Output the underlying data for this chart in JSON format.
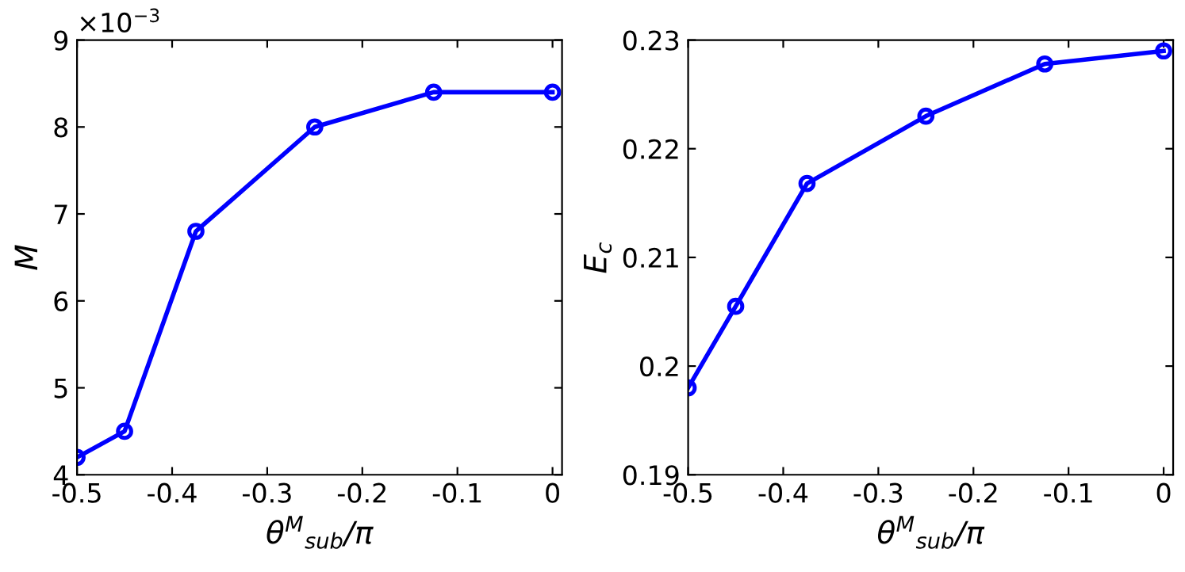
{
  "chart_data": [
    {
      "type": "line",
      "xlabel": "θ$^{M}$$_{sub}$/π",
      "ylabel": "M",
      "annotations": [
        "×10$^{−3}$"
      ],
      "x": [
        -0.5,
        -0.45,
        -0.375,
        -0.25,
        -0.125,
        0
      ],
      "series": [
        {
          "color": "#0000ff",
          "values": [
            4.2,
            4.5,
            6.8,
            8.0,
            8.4,
            8.4
          ]
        }
      ],
      "xlim": [
        -0.5,
        0.01
      ],
      "xticks": [
        -0.5,
        -0.4,
        -0.3,
        -0.2,
        -0.1,
        0
      ],
      "ylim": [
        4,
        9
      ],
      "yticks": [
        4,
        5,
        6,
        7,
        8,
        9
      ],
      "grid": false,
      "marker": "circle",
      "line_style": "solid"
    },
    {
      "type": "line",
      "xlabel": "θ$^{M}$$_{sub}$/π",
      "ylabel": "E$_{c}$",
      "x": [
        -0.5,
        -0.45,
        -0.375,
        -0.25,
        -0.125,
        0
      ],
      "series": [
        {
          "color": "#0000ff",
          "values": [
            0.198,
            0.2055,
            0.2168,
            0.223,
            0.2278,
            0.229
          ]
        }
      ],
      "xlim": [
        -0.5,
        0.01
      ],
      "xticks": [
        -0.5,
        -0.4,
        -0.3,
        -0.2,
        -0.1,
        0
      ],
      "ylim": [
        0.19,
        0.23
      ],
      "yticks": [
        0.19,
        0.2,
        0.21,
        0.22,
        0.23
      ],
      "grid": false,
      "marker": "circle",
      "line_style": "solid"
    }
  ]
}
